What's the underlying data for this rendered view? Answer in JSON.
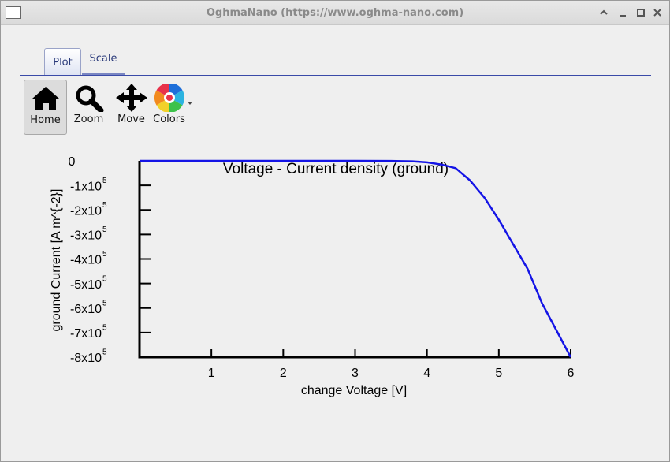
{
  "window": {
    "title": "OghmaNano (https://www.oghma-nano.com)"
  },
  "tabs": [
    "Plot",
    "Scale"
  ],
  "toolbar": [
    "Home",
    "Zoom",
    "Move",
    "Colors"
  ],
  "chart_data": {
    "type": "line",
    "title": "Voltage - Current density (ground)",
    "xlabel": "change Voltage [V]",
    "ylabel": "ground Current [A m^{-2}]",
    "x": [
      0,
      1,
      2,
      3,
      3.5,
      3.8,
      4,
      4.2,
      4.4,
      4.6,
      4.8,
      5,
      5.2,
      5.4,
      5.6,
      5.8,
      6
    ],
    "series": [
      {
        "color": "#1414e6",
        "values": [
          0,
          0,
          0,
          0,
          -500,
          -2000,
          -6000,
          -15000,
          -30000,
          -80000,
          -150000,
          -240000,
          -340000,
          -440000,
          -580000,
          -690000,
          -800000
        ]
      }
    ],
    "xlim": [
      0,
      6
    ],
    "ylim": [
      -800000,
      0
    ],
    "xticks": [
      1,
      2,
      3,
      4,
      5,
      6
    ],
    "yticks": [
      0,
      {
        "value": -100000,
        "label": "-1x10",
        "exponent": "5"
      },
      {
        "value": -200000,
        "label": "-2x10",
        "exponent": "5"
      },
      {
        "value": -300000,
        "label": "-3x10",
        "exponent": "5"
      },
      {
        "value": -400000,
        "label": "-4x10",
        "exponent": "5"
      },
      {
        "value": -500000,
        "label": "-5x10",
        "exponent": "5"
      },
      {
        "value": -600000,
        "label": "-6x10",
        "exponent": "5"
      },
      {
        "value": -700000,
        "label": "-7x10",
        "exponent": "5"
      },
      {
        "value": -800000,
        "label": "-8x10",
        "exponent": "5"
      }
    ]
  }
}
